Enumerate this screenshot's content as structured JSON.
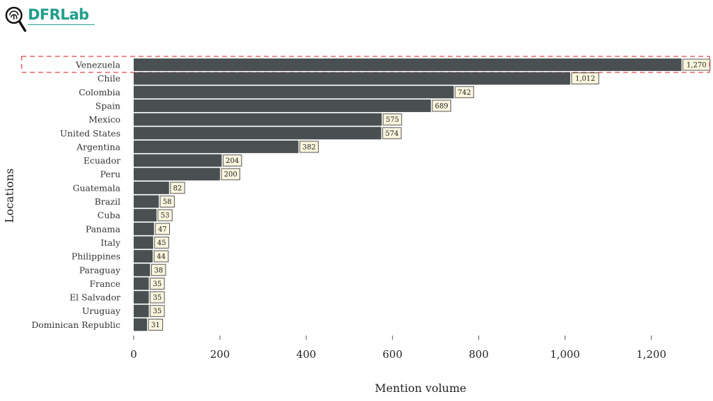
{
  "brand": {
    "name": "DFRLab",
    "color": "#1f9e8a"
  },
  "chart_data": {
    "type": "bar",
    "orientation": "horizontal",
    "categories": [
      "Venezuela",
      "Chile",
      "Colombia",
      "Spain",
      "Mexico",
      "United States",
      "Argentina",
      "Ecuador",
      "Peru",
      "Guatemala",
      "Brazil",
      "Cuba",
      "Panama",
      "Italy",
      "Philippines",
      "Paraguay",
      "France",
      "El Salvador",
      "Uruguay",
      "Dominican Republic"
    ],
    "values": [
      1270,
      1012,
      742,
      689,
      575,
      574,
      382,
      204,
      200,
      82,
      58,
      53,
      47,
      45,
      44,
      38,
      35,
      35,
      35,
      31
    ],
    "value_labels": [
      "1,270",
      "1,012",
      "742",
      "689",
      "575",
      "574",
      "382",
      "204",
      "200",
      "82",
      "58",
      "53",
      "47",
      "45",
      "44",
      "38",
      "35",
      "35",
      "35",
      "31"
    ],
    "xlabel": "Mention volume",
    "ylabel": "Locations",
    "xticks": [
      0,
      200,
      400,
      600,
      800,
      1000,
      1200
    ],
    "xtick_labels": [
      "0",
      "200",
      "400",
      "600",
      "800",
      "1,000",
      "1,200"
    ],
    "xlim": [
      0,
      1310
    ],
    "highlighted_category": "Venezuela",
    "grid": false,
    "colors": {
      "bar": "#4a5052",
      "label_bg": "#faf5dd",
      "label_border": "#555555",
      "highlight": "#e8474a"
    }
  }
}
